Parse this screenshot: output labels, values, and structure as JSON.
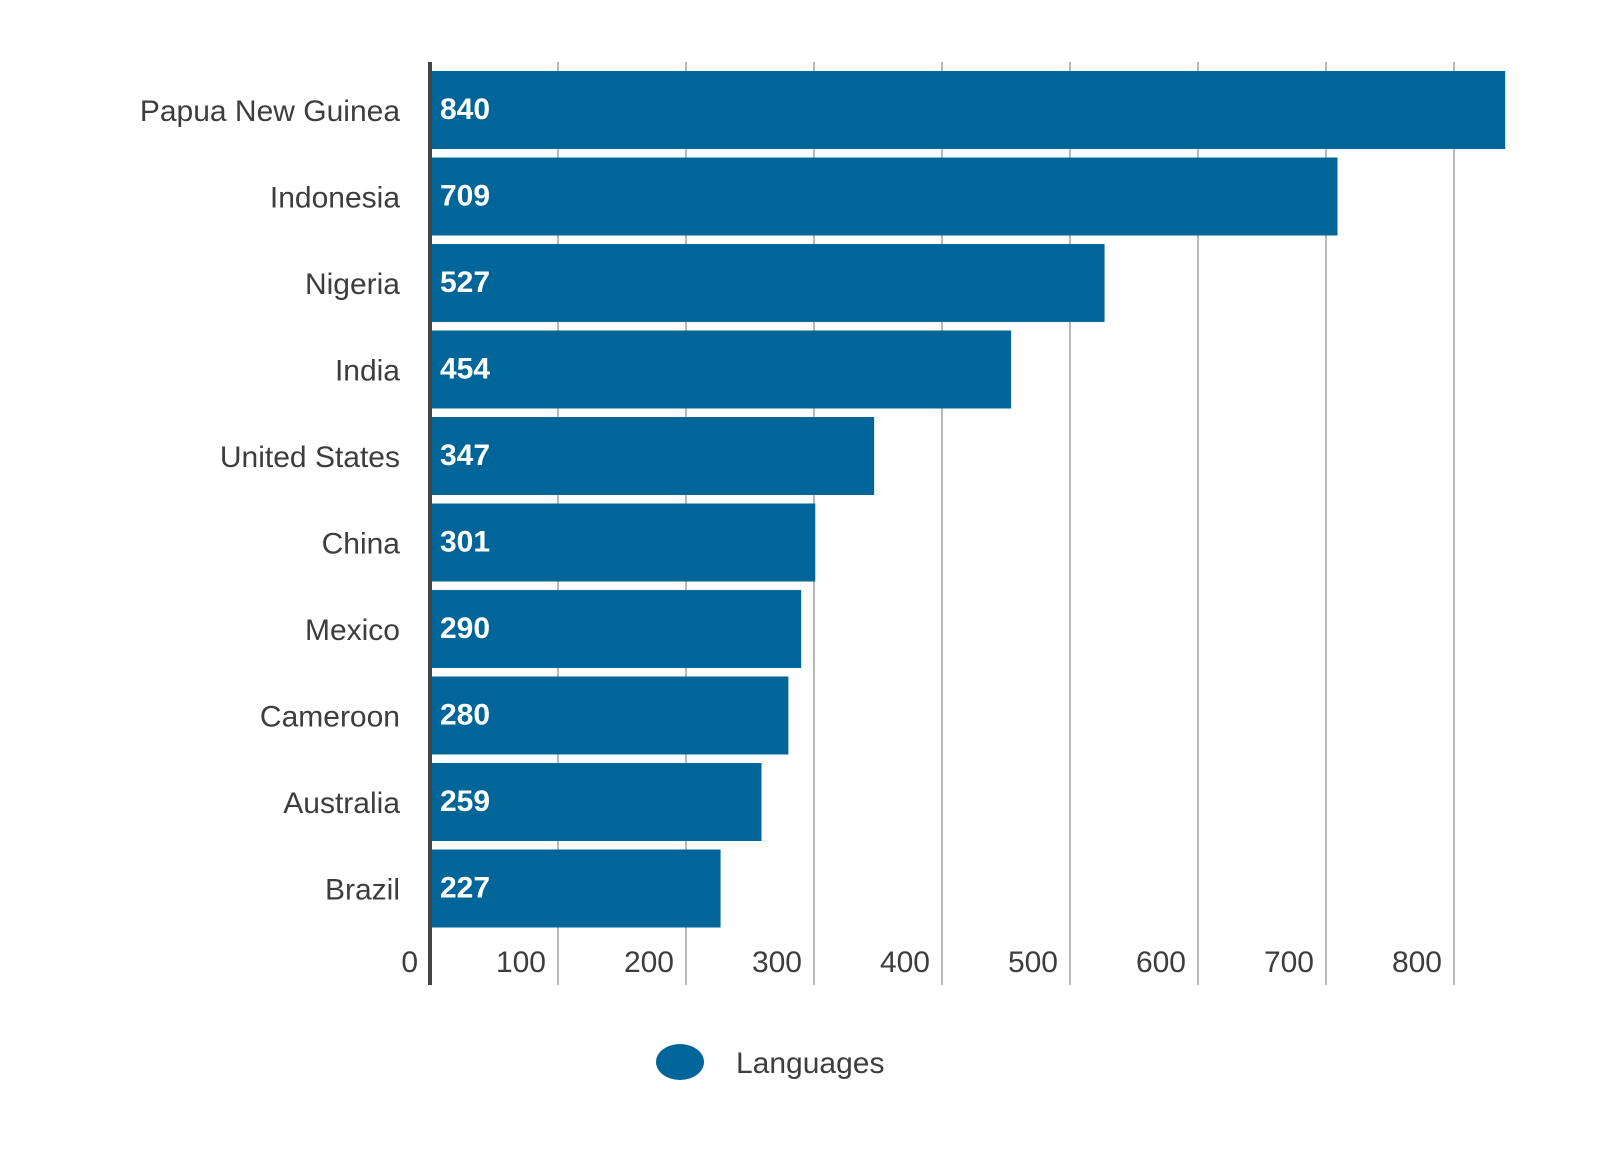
{
  "chart_data": {
    "type": "bar",
    "orientation": "horizontal",
    "categories": [
      "Papua New Guinea",
      "Indonesia",
      "Nigeria",
      "India",
      "United States",
      "China",
      "Mexico",
      "Cameroon",
      "Australia",
      "Brazil"
    ],
    "series": [
      {
        "name": "Languages",
        "values": [
          840,
          709,
          527,
          454,
          347,
          301,
          290,
          280,
          259,
          227
        ],
        "color": "#006699"
      }
    ],
    "value_labels": [
      "840",
      "709",
      "527",
      "454",
      "347",
      "301",
      "290",
      "280",
      "259",
      "227"
    ],
    "x_ticks": [
      0,
      100,
      200,
      300,
      400,
      500,
      600,
      700,
      800
    ],
    "x_tick_labels": [
      "0",
      "100",
      "200",
      "300",
      "400",
      "500",
      "600",
      "700",
      "800"
    ],
    "xlim": [
      0,
      850
    ],
    "grid": true,
    "legend_placement": "bottom-center",
    "title": "",
    "xlabel": "",
    "ylabel": ""
  }
}
